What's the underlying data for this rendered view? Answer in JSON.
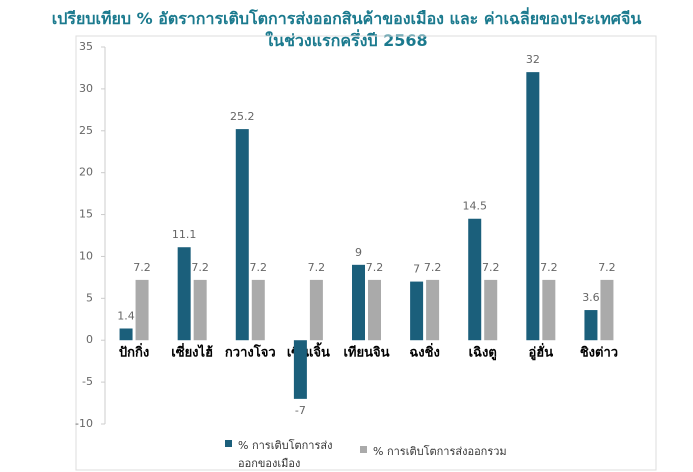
{
  "chart_data": {
    "type": "bar",
    "title": [
      "เปรียบเทียบ % อัตราการเติบโตการส่งออกสินค้าของเมือง และ ค่าเฉลี่ยของประเทศจีน",
      "ในช่วงแรกครึ่งปี 2568"
    ],
    "categories": [
      "ปักกิ่ง",
      "เซี่ยงไฮ้",
      "กวางโจว",
      "เซินเจิ้น",
      "เทียนจิน",
      "ฉงชิ่ง",
      "เฉิงตู",
      "อู่ฮั่น",
      "ชิงต่าว"
    ],
    "series": [
      {
        "name": "% การเติบโตการส่งออกของเมือง",
        "color": "#1b5f7b",
        "values": [
          1.4,
          11.1,
          25.2,
          -7,
          9,
          7,
          14.5,
          32,
          3.6
        ]
      },
      {
        "name": "% การเติบโตการส่งออกรวม",
        "color": "#aaaaaa",
        "values": [
          7.2,
          7.2,
          7.2,
          7.2,
          7.2,
          7.2,
          7.2,
          7.2,
          7.2
        ]
      }
    ],
    "ylim": [
      -10,
      35
    ],
    "yticks": [
      -10,
      -5,
      0,
      5,
      10,
      15,
      20,
      25,
      30,
      35
    ],
    "grid": false,
    "legend": "bottom"
  }
}
